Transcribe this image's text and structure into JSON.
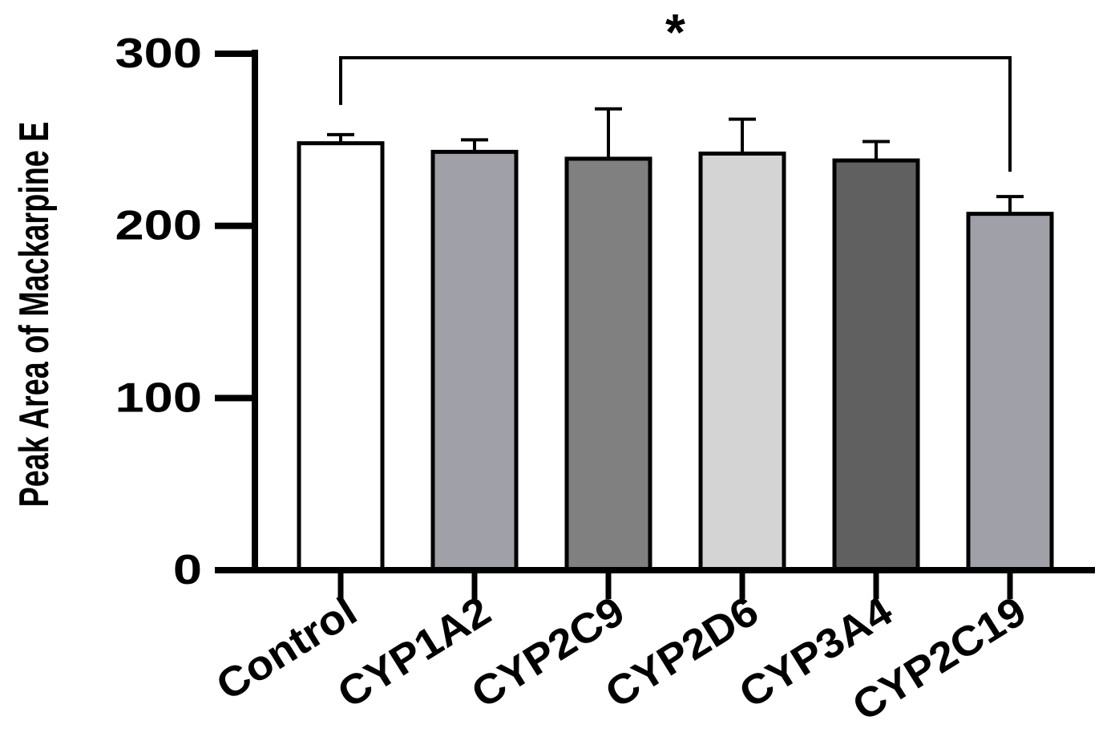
{
  "chart_data": {
    "type": "bar",
    "title": "",
    "xlabel": "",
    "ylabel": "Peak Area of Mackarpine E",
    "ylim": [
      0,
      300
    ],
    "yticks": [
      0,
      100,
      200,
      300
    ],
    "categories": [
      "Control",
      "CYP1A2",
      "CYP2C9",
      "CYP2D6",
      "CYP3A4",
      "CYP2C19"
    ],
    "values": [
      248,
      243,
      239,
      242,
      238,
      207
    ],
    "errors": [
      5,
      7,
      29,
      20,
      11,
      10
    ],
    "bar_colors": [
      "#ffffff",
      "#a0a0a8",
      "#808080",
      "#d4d4d4",
      "#606060",
      "#a0a0a8"
    ],
    "grid": false,
    "legend": "none",
    "significance": {
      "from": "Control",
      "to": "CYP2C19",
      "marker": "*"
    }
  }
}
